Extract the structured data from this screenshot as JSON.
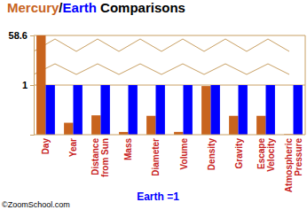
{
  "chart_data": {
    "type": "bar",
    "title": "Mercury/Earth Comparisons",
    "categories": [
      "Day",
      "Year",
      "Distance from Sun",
      "Mass",
      "Diameter",
      "Volume",
      "Density",
      "Gravity",
      "Escape Velocity",
      "Atmospheric Pressure"
    ],
    "series": [
      {
        "name": "Mercury",
        "color": "#c8641e",
        "values": [
          58.6,
          0.24,
          0.39,
          0.055,
          0.38,
          0.056,
          0.98,
          0.38,
          0.38,
          0.01
        ]
      },
      {
        "name": "Earth",
        "color": "#0000ff",
        "values": [
          1,
          1,
          1,
          1,
          1,
          1,
          1,
          1,
          1,
          1
        ]
      }
    ],
    "ylim": [
      0,
      58.6
    ],
    "yticks": [
      1,
      58.6
    ],
    "grid": true,
    "xlabel": "Earth =1",
    "annotations": [
      "©ZoomSchool.com"
    ]
  }
}
